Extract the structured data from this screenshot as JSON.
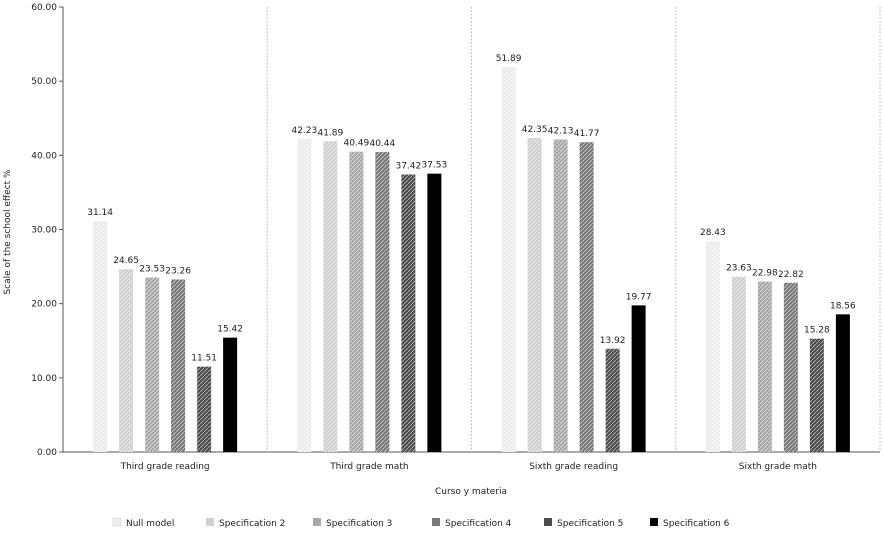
{
  "chart_data": {
    "type": "bar",
    "title": "",
    "xlabel": "Curso y materia",
    "ylabel": "Scale of the school effect %",
    "ylim": [
      0,
      60
    ],
    "yticks": [
      "0.00",
      "10.00",
      "20.00",
      "30.00",
      "40.00",
      "50.00",
      "60.00"
    ],
    "legend_position": "bottom",
    "grid": false,
    "categories": [
      "Third grade reading",
      "Third grade math",
      "Sixth grade reading",
      "Sixth grade math"
    ],
    "series": [
      {
        "name": "Null model",
        "values": [
          31.14,
          42.23,
          51.89,
          28.43
        ],
        "labels": [
          "31.14",
          "42.23",
          "51.89",
          "28.43"
        ],
        "color": "#ececec"
      },
      {
        "name": "Specification 2",
        "values": [
          24.65,
          41.89,
          42.35,
          23.63
        ],
        "labels": [
          "24.65",
          "41.89",
          "42.35",
          "23.63"
        ],
        "color": "#d0d0d0"
      },
      {
        "name": "Specification 3",
        "values": [
          23.53,
          40.49,
          42.13,
          22.98
        ],
        "labels": [
          "23.53",
          "40.49",
          "42.13",
          "22.98"
        ],
        "color": "#a9a9a9"
      },
      {
        "name": "Specification 4",
        "values": [
          23.26,
          40.44,
          41.77,
          22.82
        ],
        "labels": [
          "23.26",
          "40.44",
          "41.77",
          "22.82"
        ],
        "color": "#7a7a7a"
      },
      {
        "name": "Specification 5",
        "values": [
          11.51,
          37.42,
          13.92,
          15.28
        ],
        "labels": [
          "11.51",
          "37.42",
          "13.92",
          "15.28"
        ],
        "color": "#4d4d4d"
      },
      {
        "name": "Specification 6",
        "values": [
          15.42,
          37.53,
          19.77,
          18.56
        ],
        "labels": [
          "15.42",
          "37.53",
          "19.77",
          "18.56"
        ],
        "color": "#000000"
      }
    ]
  }
}
